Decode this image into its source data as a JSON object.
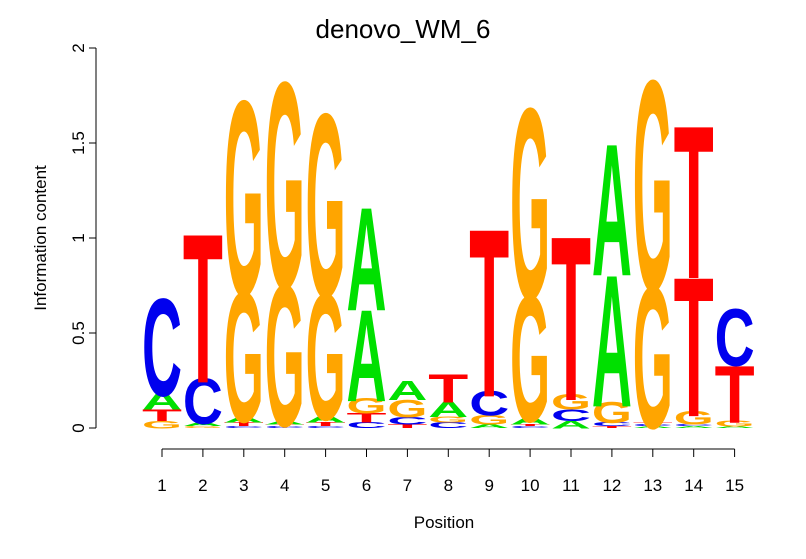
{
  "chart_data": {
    "type": "sequence-logo",
    "title": "denovo_WM_6",
    "xlabel": "Position",
    "ylabel": "Information content",
    "ylim": [
      0,
      2
    ],
    "yticks": [
      "0",
      "0.5",
      "1",
      "1.5",
      "2"
    ],
    "positions": [
      "1",
      "2",
      "3",
      "4",
      "5",
      "6",
      "7",
      "8",
      "9",
      "10",
      "11",
      "12",
      "13",
      "14",
      "15"
    ],
    "colors": {
      "A": "#00e000",
      "C": "#0000ee",
      "G": "#ffa500",
      "T": "#ff0000"
    },
    "stacks": [
      [
        [
          "G",
          0.04
        ],
        [
          "T",
          0.06
        ],
        [
          "A",
          0.09
        ],
        [
          "C",
          0.51
        ]
      ],
      [
        [
          "G",
          0.01
        ],
        [
          "A",
          0.02
        ],
        [
          "C",
          0.24
        ],
        [
          "T",
          0.78
        ]
      ],
      [
        [
          "C",
          0.01
        ],
        [
          "T",
          0.02
        ],
        [
          "A",
          0.03
        ],
        [
          "G",
          0.68
        ],
        [
          "G",
          1.02
        ]
      ],
      [
        [
          "C",
          0.01
        ],
        [
          "T",
          0.01
        ],
        [
          "A",
          0.02
        ],
        [
          "G",
          0.74
        ],
        [
          "G",
          1.08
        ]
      ],
      [
        [
          "C",
          0.01
        ],
        [
          "T",
          0.02
        ],
        [
          "A",
          0.04
        ],
        [
          "G",
          0.66
        ],
        [
          "G",
          0.96
        ]
      ],
      [
        [
          "C",
          0.03
        ],
        [
          "T",
          0.05
        ],
        [
          "G",
          0.08
        ],
        [
          "A",
          0.48
        ],
        [
          "A",
          0.54
        ]
      ],
      [
        [
          "T",
          0.02
        ],
        [
          "C",
          0.04
        ],
        [
          "G",
          0.09
        ],
        [
          "A",
          0.1
        ]
      ],
      [
        [
          "C",
          0.03
        ],
        [
          "G",
          0.03
        ],
        [
          "A",
          0.08
        ],
        [
          "T",
          0.15
        ]
      ],
      [
        [
          "A",
          0.02
        ],
        [
          "G",
          0.05
        ],
        [
          "C",
          0.13
        ],
        [
          "T",
          0.88
        ]
      ],
      [
        [
          "C",
          0.01
        ],
        [
          "T",
          0.01
        ],
        [
          "A",
          0.04
        ],
        [
          "G",
          0.66
        ],
        [
          "G",
          1.0
        ]
      ],
      [
        [
          "A",
          0.04
        ],
        [
          "C",
          0.06
        ],
        [
          "G",
          0.08
        ],
        [
          "T",
          0.86
        ]
      ],
      [
        [
          "T",
          0.01
        ],
        [
          "C",
          0.02
        ],
        [
          "G",
          0.11
        ],
        [
          "A",
          0.69
        ],
        [
          "A",
          0.69
        ]
      ],
      [
        [
          "A",
          0.01
        ],
        [
          "C",
          0.01
        ],
        [
          "T",
          0.01
        ],
        [
          "G",
          0.74
        ],
        [
          "G",
          1.1
        ]
      ],
      [
        [
          "A",
          0.01
        ],
        [
          "C",
          0.01
        ],
        [
          "G",
          0.07
        ],
        [
          "T",
          0.73
        ],
        [
          "T",
          0.8
        ]
      ],
      [
        [
          "A",
          0.01
        ],
        [
          "G",
          0.03
        ],
        [
          "T",
          0.3
        ],
        [
          "C",
          0.3
        ]
      ]
    ]
  }
}
